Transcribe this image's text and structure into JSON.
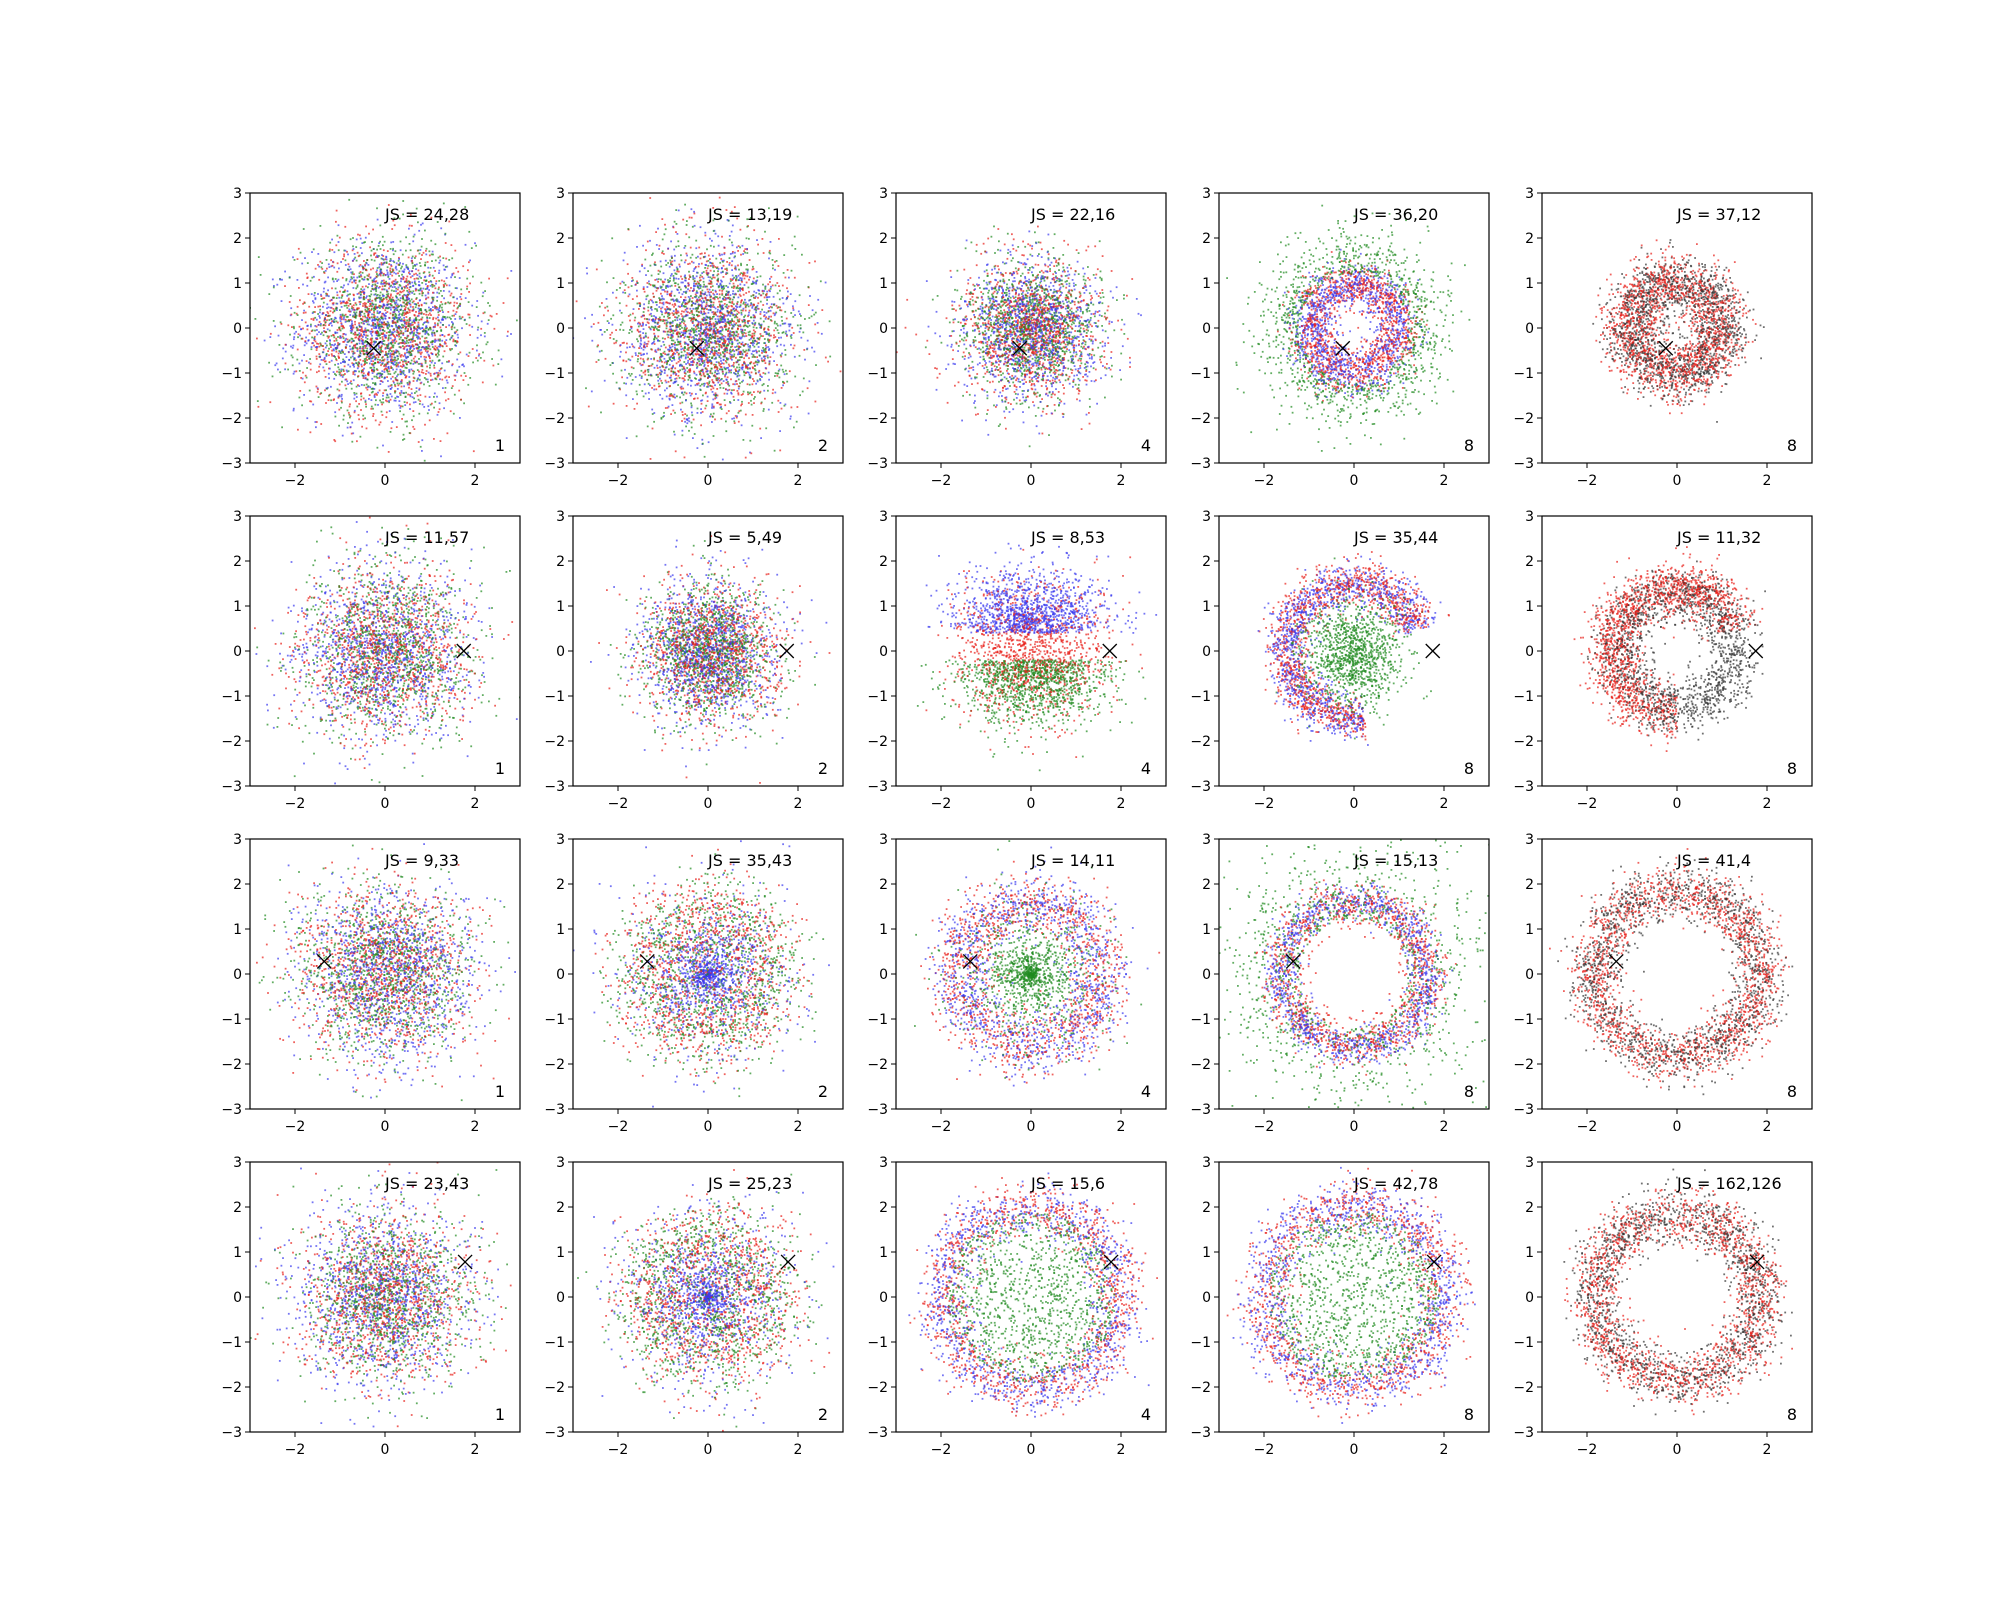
{
  "figure": {
    "rows": 4,
    "cols": 5
  },
  "chart_data": [
    {
      "type": "scatter",
      "pattern": "isotropic",
      "colors": [
        "blue",
        "red",
        "green"
      ],
      "marker": {
        "x": -0.25,
        "y": -0.45
      },
      "annotation": "JS = 24,28",
      "corner_label": "1",
      "xlim": [
        -3,
        3
      ],
      "ylim": [
        -3,
        3
      ],
      "xticks": [
        "−2",
        "0",
        "2"
      ],
      "yticks": [
        "3",
        "2",
        "1",
        "0",
        "−1",
        "−2",
        "−3"
      ]
    },
    {
      "type": "scatter",
      "pattern": "isotropic",
      "colors": [
        "blue",
        "red",
        "green"
      ],
      "marker": {
        "x": -0.25,
        "y": -0.45
      },
      "annotation": "JS = 13,19",
      "corner_label": "2",
      "xlim": [
        -3,
        3
      ],
      "ylim": [
        -3,
        3
      ],
      "xticks": [
        "−2",
        "0",
        "2"
      ],
      "yticks": [
        "3",
        "2",
        "1",
        "0",
        "−1",
        "−2",
        "−3"
      ]
    },
    {
      "type": "scatter",
      "pattern": "isotropic-tight",
      "colors": [
        "blue",
        "red",
        "green"
      ],
      "marker": {
        "x": -0.25,
        "y": -0.45
      },
      "annotation": "JS = 22,16",
      "corner_label": "4",
      "xlim": [
        -3,
        3
      ],
      "ylim": [
        -3,
        3
      ],
      "xticks": [
        "−2",
        "0",
        "2"
      ],
      "yticks": [
        "3",
        "2",
        "1",
        "0",
        "−1",
        "−2",
        "−3"
      ]
    },
    {
      "type": "scatter",
      "pattern": "ring",
      "colors": [
        "green",
        "blue",
        "red"
      ],
      "marker": {
        "x": -0.25,
        "y": -0.45
      },
      "annotation": "JS = 36,20",
      "corner_label": "8",
      "xlim": [
        -3,
        3
      ],
      "ylim": [
        -3,
        3
      ],
      "xticks": [
        "−2",
        "0",
        "2"
      ],
      "yticks": [
        "3",
        "2",
        "1",
        "0",
        "−1",
        "−2",
        "−3"
      ]
    },
    {
      "type": "scatter",
      "pattern": "ring-two",
      "colors": [
        "black",
        "red"
      ],
      "marker": {
        "x": -0.25,
        "y": -0.45
      },
      "annotation": "JS = 37,12",
      "corner_label": "8",
      "xlim": [
        -3,
        3
      ],
      "ylim": [
        -3,
        3
      ],
      "xticks": [
        "−2",
        "0",
        "2"
      ],
      "yticks": [
        "3",
        "2",
        "1",
        "0",
        "−1",
        "−2",
        "−3"
      ]
    },
    {
      "type": "scatter",
      "pattern": "isotropic",
      "colors": [
        "blue",
        "red",
        "green"
      ],
      "marker": {
        "x": 1.75,
        "y": 0.0
      },
      "annotation": "JS = 11,57",
      "corner_label": "1",
      "xlim": [
        -3,
        3
      ],
      "ylim": [
        -3,
        3
      ],
      "xticks": [
        "−2",
        "0",
        "2"
      ],
      "yticks": [
        "3",
        "2",
        "1",
        "0",
        "−1",
        "−2",
        "−3"
      ]
    },
    {
      "type": "scatter",
      "pattern": "isotropic-tight",
      "colors": [
        "blue",
        "red",
        "green"
      ],
      "marker": {
        "x": 1.75,
        "y": 0.0
      },
      "annotation": "JS = 5,49",
      "corner_label": "2",
      "xlim": [
        -3,
        3
      ],
      "ylim": [
        -3,
        3
      ],
      "xticks": [
        "−2",
        "0",
        "2"
      ],
      "yticks": [
        "3",
        "2",
        "1",
        "0",
        "−1",
        "−2",
        "−3"
      ]
    },
    {
      "type": "scatter",
      "pattern": "split",
      "colors": [
        "blue",
        "red",
        "green"
      ],
      "marker": {
        "x": 1.75,
        "y": 0.0
      },
      "annotation": "JS = 8,53",
      "corner_label": "4",
      "xlim": [
        -3,
        3
      ],
      "ylim": [
        -3,
        3
      ],
      "xticks": [
        "−2",
        "0",
        "2"
      ],
      "yticks": [
        "3",
        "2",
        "1",
        "0",
        "−1",
        "−2",
        "−3"
      ]
    },
    {
      "type": "scatter",
      "pattern": "arc-core",
      "colors": [
        "blue",
        "red",
        "green"
      ],
      "marker": {
        "x": 1.75,
        "y": 0.0
      },
      "annotation": "JS = 35,44",
      "corner_label": "8",
      "xlim": [
        -3,
        3
      ],
      "ylim": [
        -3,
        3
      ],
      "xticks": [
        "−2",
        "0",
        "2"
      ],
      "yticks": [
        "3",
        "2",
        "1",
        "0",
        "−1",
        "−2",
        "−3"
      ]
    },
    {
      "type": "scatter",
      "pattern": "arc-two",
      "colors": [
        "black",
        "red"
      ],
      "marker": {
        "x": 1.75,
        "y": 0.0
      },
      "annotation": "JS = 11,32",
      "corner_label": "8",
      "xlim": [
        -3,
        3
      ],
      "ylim": [
        -3,
        3
      ],
      "xticks": [
        "−2",
        "0",
        "2"
      ],
      "yticks": [
        "3",
        "2",
        "1",
        "0",
        "−1",
        "−2",
        "−3"
      ]
    },
    {
      "type": "scatter",
      "pattern": "isotropic",
      "colors": [
        "green",
        "red",
        "blue"
      ],
      "marker": {
        "x": -1.35,
        "y": 0.28
      },
      "annotation": "JS = 9,33",
      "corner_label": "1",
      "xlim": [
        -3,
        3
      ],
      "ylim": [
        -3,
        3
      ],
      "xticks": [
        "−2",
        "0",
        "2"
      ],
      "yticks": [
        "3",
        "2",
        "1",
        "0",
        "−1",
        "−2",
        "−3"
      ]
    },
    {
      "type": "scatter",
      "pattern": "shell-soft",
      "colors": [
        "green",
        "red",
        "blue"
      ],
      "marker": {
        "x": -1.35,
        "y": 0.28
      },
      "annotation": "JS = 35,43",
      "corner_label": "2",
      "xlim": [
        -3,
        3
      ],
      "ylim": [
        -3,
        3
      ],
      "xticks": [
        "−2",
        "0",
        "2"
      ],
      "yticks": [
        "3",
        "2",
        "1",
        "0",
        "−1",
        "−2",
        "−3"
      ]
    },
    {
      "type": "scatter",
      "pattern": "shell-core",
      "colors": [
        "blue",
        "red",
        "green"
      ],
      "marker": {
        "x": -1.35,
        "y": 0.28
      },
      "annotation": "JS = 14,11",
      "corner_label": "4",
      "xlim": [
        -3,
        3
      ],
      "ylim": [
        -3,
        3
      ],
      "xticks": [
        "−2",
        "0",
        "2"
      ],
      "yticks": [
        "3",
        "2",
        "1",
        "0",
        "−1",
        "−2",
        "−3"
      ]
    },
    {
      "type": "scatter",
      "pattern": "ring-spread",
      "colors": [
        "green",
        "red",
        "blue"
      ],
      "marker": {
        "x": -1.35,
        "y": 0.28
      },
      "annotation": "JS = 15,13",
      "corner_label": "8",
      "xlim": [
        -3,
        3
      ],
      "ylim": [
        -3,
        3
      ],
      "xticks": [
        "−2",
        "0",
        "2"
      ],
      "yticks": [
        "3",
        "2",
        "1",
        "0",
        "−1",
        "−2",
        "−3"
      ]
    },
    {
      "type": "scatter",
      "pattern": "ring-two-wide",
      "colors": [
        "black",
        "red"
      ],
      "marker": {
        "x": -1.35,
        "y": 0.28
      },
      "annotation": "JS = 41,4",
      "corner_label": "8",
      "xlim": [
        -3,
        3
      ],
      "ylim": [
        -3,
        3
      ],
      "xticks": [
        "−2",
        "0",
        "2"
      ],
      "yticks": [
        "3",
        "2",
        "1",
        "0",
        "−1",
        "−2",
        "−3"
      ]
    },
    {
      "type": "scatter",
      "pattern": "isotropic",
      "colors": [
        "blue",
        "red",
        "green"
      ],
      "marker": {
        "x": 1.78,
        "y": 0.78
      },
      "annotation": "JS = 23,43",
      "corner_label": "1",
      "xlim": [
        -3,
        3
      ],
      "ylim": [
        -3,
        3
      ],
      "xticks": [
        "−2",
        "0",
        "2"
      ],
      "yticks": [
        "3",
        "2",
        "1",
        "0",
        "−1",
        "−2",
        "−3"
      ]
    },
    {
      "type": "scatter",
      "pattern": "shell-soft",
      "colors": [
        "green",
        "red",
        "blue"
      ],
      "marker": {
        "x": 1.78,
        "y": 0.78
      },
      "annotation": "JS = 25,23",
      "corner_label": "2",
      "xlim": [
        -3,
        3
      ],
      "ylim": [
        -3,
        3
      ],
      "xticks": [
        "−2",
        "0",
        "2"
      ],
      "yticks": [
        "3",
        "2",
        "1",
        "0",
        "−1",
        "−2",
        "−3"
      ]
    },
    {
      "type": "scatter",
      "pattern": "shell-core-wide",
      "colors": [
        "blue",
        "red",
        "green"
      ],
      "marker": {
        "x": 1.78,
        "y": 0.78
      },
      "annotation": "JS = 15,6",
      "corner_label": "4",
      "xlim": [
        -3,
        3
      ],
      "ylim": [
        -3,
        3
      ],
      "xticks": [
        "−2",
        "0",
        "2"
      ],
      "yticks": [
        "3",
        "2",
        "1",
        "0",
        "−1",
        "−2",
        "−3"
      ]
    },
    {
      "type": "scatter",
      "pattern": "shell-core-wide",
      "colors": [
        "blue",
        "red",
        "green"
      ],
      "marker": {
        "x": 1.78,
        "y": 0.78
      },
      "annotation": "JS = 42,78",
      "corner_label": "8",
      "xlim": [
        -3,
        3
      ],
      "ylim": [
        -3,
        3
      ],
      "xticks": [
        "−2",
        "0",
        "2"
      ],
      "yticks": [
        "3",
        "2",
        "1",
        "0",
        "−1",
        "−2",
        "−3"
      ]
    },
    {
      "type": "scatter",
      "pattern": "ring-two-wide",
      "colors": [
        "black",
        "red"
      ],
      "marker": {
        "x": 1.78,
        "y": 0.78
      },
      "annotation": "JS = 162,126",
      "corner_label": "8",
      "xlim": [
        -3,
        3
      ],
      "ylim": [
        -3,
        3
      ],
      "xticks": [
        "−2",
        "0",
        "2"
      ],
      "yticks": [
        "3",
        "2",
        "1",
        "0",
        "−1",
        "−2",
        "−3"
      ]
    }
  ]
}
